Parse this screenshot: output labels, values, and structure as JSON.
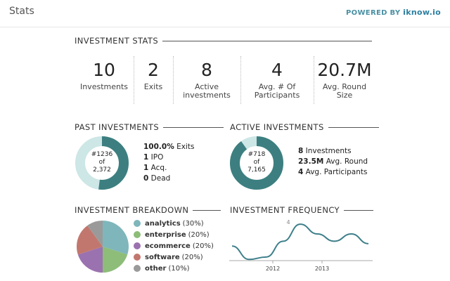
{
  "header": {
    "title": "Stats",
    "powered_prefix": "POWERED BY ",
    "brand": "iknow.io"
  },
  "stats_section": {
    "title": "INVESTMENT STATS",
    "items": [
      {
        "value": "10",
        "label_line1": "Investments",
        "label_line2": ""
      },
      {
        "value": "2",
        "label_line1": "Exits",
        "label_line2": ""
      },
      {
        "value": "8",
        "label_line1": "Active",
        "label_line2": "investments"
      },
      {
        "value": "4",
        "label_line1": "Avg. # Of",
        "label_line2": "Participants"
      },
      {
        "value": "20.7M",
        "label_line1": "Avg. Round",
        "label_line2": "Size"
      }
    ]
  },
  "past": {
    "title": "PAST INVESTMENTS",
    "rank": "#1236",
    "of": "of",
    "total": "2,372",
    "fraction": 0.52,
    "lines": [
      {
        "bold": "100.0%",
        "text": " Exits"
      },
      {
        "bold": "1",
        "text": " IPO"
      },
      {
        "bold": "1",
        "text": " Acq."
      },
      {
        "bold": "0",
        "text": " Dead"
      }
    ]
  },
  "active": {
    "title": "ACTIVE INVESTMENTS",
    "rank": "#718",
    "of": "of",
    "total": "7,165",
    "fraction": 0.9,
    "lines": [
      {
        "bold": "8",
        "text": " Investments"
      },
      {
        "bold": "23.5M",
        "text": " Avg. Round"
      },
      {
        "bold": "4",
        "text": " Avg. Participants"
      }
    ]
  },
  "breakdown": {
    "title": "INVESTMENT BREAKDOWN",
    "items": [
      {
        "name": "analytics",
        "pct": "(30%)",
        "value": 30,
        "color": "#7fb6bb"
      },
      {
        "name": "enterprise",
        "pct": "(20%)",
        "value": 20,
        "color": "#8dbd78"
      },
      {
        "name": "ecommerce",
        "pct": "(20%)",
        "value": 20,
        "color": "#9b72b0"
      },
      {
        "name": "software",
        "pct": "(20%)",
        "value": 20,
        "color": "#c2776e"
      },
      {
        "name": "other",
        "pct": "(10%)",
        "value": 10,
        "color": "#9a9a9a"
      }
    ]
  },
  "chart_data": {
    "type": "line",
    "title": "INVESTMENT FREQUENCY",
    "x_ticks": [
      "2012",
      "2013"
    ],
    "peak_label": "4",
    "color": "#3d7f8a",
    "series": [
      {
        "values": [
          2.2,
          1.1,
          1.3,
          2.6,
          4.0,
          3.2,
          2.6,
          3.2,
          2.4
        ]
      }
    ],
    "ylim": [
      1,
      4.3
    ]
  }
}
